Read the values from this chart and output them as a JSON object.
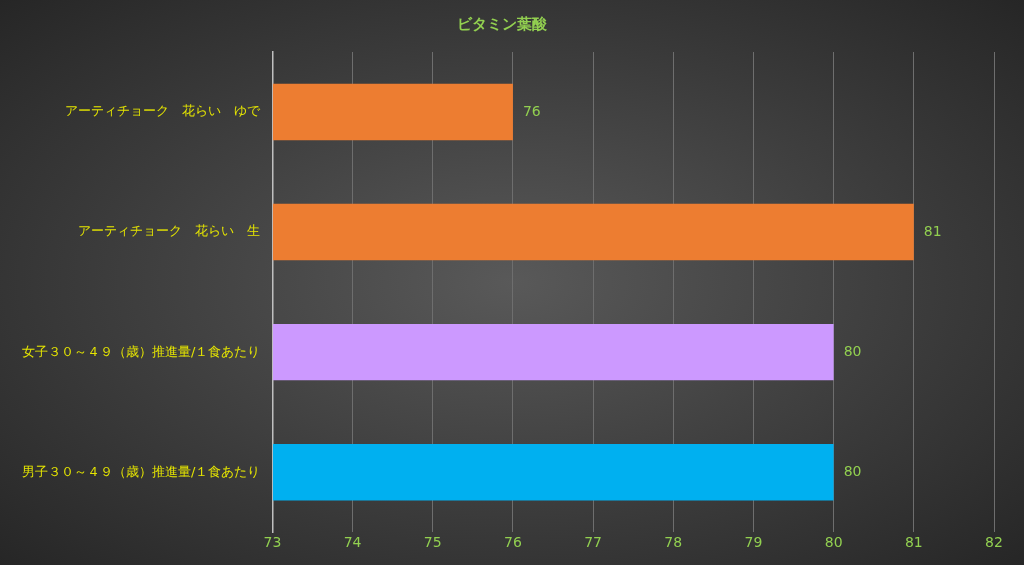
{
  "chart_data": {
    "type": "bar",
    "orientation": "horizontal",
    "title": "ビタミン葉酸",
    "categories": [
      "アーティチョーク　花らい　ゆで",
      "アーティチョーク　花らい　生",
      "女子３０～４９（歳）推進量/１食あたり",
      "男子３０～４９（歳）推進量/１食あたり"
    ],
    "values": [
      76,
      81,
      80,
      80
    ],
    "colors": [
      "#ed7d31",
      "#ed7d31",
      "#cc99ff",
      "#00b0f0"
    ],
    "xlim": [
      73,
      82
    ],
    "xticks": [
      73,
      74,
      75,
      76,
      77,
      78,
      79,
      80,
      81,
      82
    ],
    "grid": "x",
    "legend": false,
    "data_labels": true
  }
}
